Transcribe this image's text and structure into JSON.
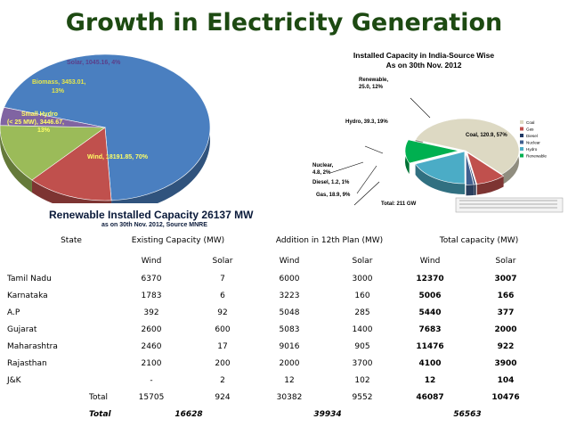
{
  "title": "Growth in Electricity Generation",
  "chart_data": [
    {
      "type": "pie",
      "slices": [
        {
          "label": "Wind",
          "value": 18191.85,
          "pct": "70%",
          "color": "#4a7fc0"
        },
        {
          "label": "Small Hydro (< 25 MW)",
          "value": 3446.67,
          "pct": "13%",
          "color": "#c0504d"
        },
        {
          "label": "Biomass",
          "value": 3453.01,
          "pct": "13%",
          "color": "#9bbb59"
        },
        {
          "label": "Solar",
          "value": 1045.16,
          "pct": "4%",
          "color": "#8064a2"
        }
      ],
      "labels": {
        "solar": "Solar, 1045.16, 4%",
        "biomass_1": "Biomass, 3453.01,",
        "biomass_2": "13%",
        "hydro_1": "Small Hydro",
        "hydro_2": "(< 25 MW), 3446.67,",
        "hydro_3": "13%",
        "wind": "Wind, 18191.85, 70%"
      }
    },
    {
      "type": "pie",
      "title_1": "Installed Capacity in India-Source Wise",
      "title_2": "As on 30th Nov. 2012",
      "slices": [
        {
          "label": "Coal",
          "value": 120.9,
          "pct": "57%",
          "color": "#ddd9c3"
        },
        {
          "label": "Gas",
          "value": 18.9,
          "pct": "9%",
          "color": "#c0504d"
        },
        {
          "label": "Diesel",
          "value": 1.2,
          "pct": "1%",
          "color": "#1f3864"
        },
        {
          "label": "Nuclear",
          "value": 4.8,
          "pct": "2%",
          "color": "#3f5f8f"
        },
        {
          "label": "Hydro",
          "value": 39.3,
          "pct": "19%",
          "color": "#4bacc6"
        },
        {
          "label": "Renewable",
          "value": 25.0,
          "pct": "12%",
          "color": "#00b050"
        }
      ],
      "labels": {
        "renewable_1": "Renewable,",
        "renewable_2": "25.0, 12%",
        "hydro": "Hydro, 39.3, 19%",
        "coal": "Coal, 120.9, 57%",
        "nuclear_1": "Nuclear,",
        "nuclear_2": "4.8, 2%",
        "diesel": "Diesel, 1.2, 1%",
        "gas": "Gas, 18.9, 9%"
      },
      "legend": [
        "Coal",
        "Gas",
        "Diesel",
        "Nuclear",
        "Hydro",
        "Renewable"
      ],
      "total": "Total: 211 GW"
    }
  ],
  "renewable": {
    "title": "Renewable Installed Capacity  26137 MW",
    "subtitle": "as on  30th Nov. 2012, Source MNRE"
  },
  "table": {
    "headers": {
      "state": "State",
      "existing": "Existing Capacity (MW)",
      "addition": "Addition in 12th Plan (MW)",
      "total": "Total  capacity (MW)"
    },
    "subheaders": [
      "Wind",
      "Solar",
      "Wind",
      "Solar",
      "Wind",
      "Solar"
    ],
    "rows": [
      {
        "state": "Tamil Nadu",
        "v": [
          "6370",
          "7",
          "6000",
          "3000",
          "12370",
          "3007"
        ]
      },
      {
        "state": "Karnataka",
        "v": [
          "1783",
          "6",
          "3223",
          "160",
          "5006",
          "166"
        ]
      },
      {
        "state": "A.P",
        "v": [
          "392",
          "92",
          "5048",
          "285",
          "5440",
          "377"
        ]
      },
      {
        "state": "Gujarat",
        "v": [
          "2600",
          "600",
          "5083",
          "1400",
          "7683",
          "2000"
        ]
      },
      {
        "state": "Maharashtra",
        "v": [
          "2460",
          "17",
          "9016",
          "905",
          "11476",
          "922"
        ]
      },
      {
        "state": "Rajasthan",
        "v": [
          "2100",
          "200",
          "2000",
          "3700",
          "4100",
          "3900"
        ]
      },
      {
        "state": "J&K",
        "v": [
          "-",
          "2",
          "12",
          "102",
          "12",
          "104"
        ]
      }
    ],
    "total_label": "Total",
    "totals": [
      "15705",
      "924",
      "30382",
      "9552",
      "46087",
      "10476"
    ],
    "grand_label": "Total",
    "grand_totals": [
      "16628",
      "39934",
      "56563"
    ]
  }
}
